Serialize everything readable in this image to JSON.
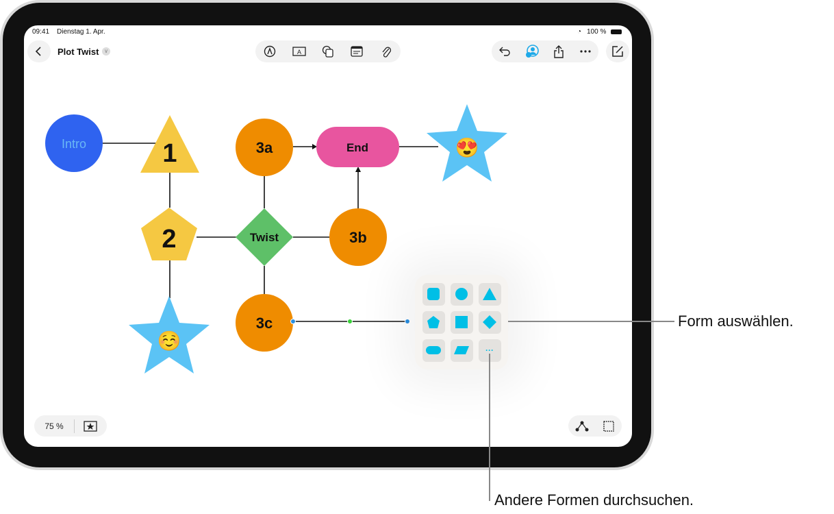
{
  "status_bar": {
    "time": "09:41",
    "date": "Dienstag 1. Apr.",
    "battery": "100 %"
  },
  "toolbar": {
    "title": "Plot Twist"
  },
  "canvas": {
    "nodes": {
      "intro": "Intro",
      "n1": "1",
      "n2": "2",
      "twist": "Twist",
      "n3a": "3a",
      "n3b": "3b",
      "n3c": "3c",
      "end": "End",
      "emoji_star_top": "😍",
      "emoji_star_bottom": "☺️"
    },
    "colors": {
      "intro": "#2f63f0",
      "yellow": "#f5c842",
      "green": "#5ec068",
      "orange": "#ef8c00",
      "pink": "#e8559f",
      "star": "#5bc3f5",
      "shape_icon": "#00bfe6"
    }
  },
  "shape_picker": {
    "items": [
      "rounded-square",
      "circle",
      "triangle",
      "pentagon",
      "square",
      "diamond",
      "pill",
      "parallelogram",
      "more"
    ],
    "more_label": "···"
  },
  "bottom_bar": {
    "zoom": "75 %"
  },
  "callouts": {
    "choose_shape": "Form auswählen.",
    "browse_shapes": "Andere Formen durchsuchen."
  }
}
